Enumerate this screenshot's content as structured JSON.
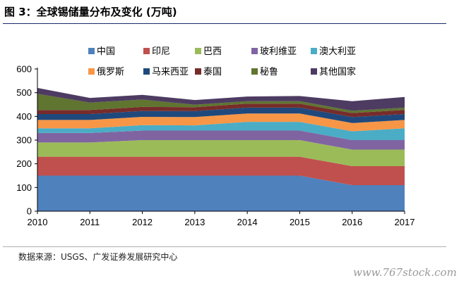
{
  "header": {
    "title": "图 3：全球锡储量分布及变化 (万吨)"
  },
  "footer": {
    "source": "数据来源：USGS、广发证券发展研究中心",
    "watermark": "www.767stock.com"
  },
  "chart_data": {
    "type": "area",
    "stacked": true,
    "title": "",
    "xlabel": "",
    "ylabel": "",
    "x": [
      "2010",
      "2011",
      "2012",
      "2013",
      "2014",
      "2015",
      "2016",
      "2017"
    ],
    "ylim": [
      0,
      600
    ],
    "yticks": [
      0,
      100,
      200,
      300,
      400,
      500,
      600
    ],
    "grid": false,
    "legend_position": "top",
    "series": [
      {
        "name": "中国",
        "color": "#4f81bd",
        "values": [
          150,
          150,
          150,
          150,
          150,
          150,
          110,
          110
        ]
      },
      {
        "name": "印尼",
        "color": "#c0504d",
        "values": [
          80,
          80,
          80,
          80,
          80,
          80,
          80,
          80
        ]
      },
      {
        "name": "巴西",
        "color": "#9bbb59",
        "values": [
          60,
          60,
          70,
          70,
          70,
          70,
          70,
          70
        ]
      },
      {
        "name": "玻利维亚",
        "color": "#8064a2",
        "values": [
          40,
          40,
          40,
          40,
          40,
          40,
          40,
          40
        ]
      },
      {
        "name": "澳大利亚",
        "color": "#4bacc6",
        "values": [
          20,
          20,
          23,
          22,
          37,
          37,
          37,
          50
        ]
      },
      {
        "name": "俄罗斯",
        "color": "#f79646",
        "values": [
          35,
          35,
          35,
          35,
          35,
          35,
          35,
          35
        ]
      },
      {
        "name": "马来西亚",
        "color": "#1f497d",
        "values": [
          25,
          25,
          25,
          25,
          25,
          25,
          25,
          25
        ]
      },
      {
        "name": "泰国",
        "color": "#772c2a",
        "values": [
          17,
          17,
          17,
          17,
          17,
          17,
          17,
          17
        ]
      },
      {
        "name": "秘鲁",
        "color": "#5f7530",
        "values": [
          68,
          31,
          31,
          10,
          10,
          10,
          10,
          10
        ]
      },
      {
        "name": "其他国家",
        "color": "#4d3b62",
        "values": [
          25,
          20,
          20,
          20,
          20,
          22,
          40,
          45
        ]
      }
    ]
  }
}
